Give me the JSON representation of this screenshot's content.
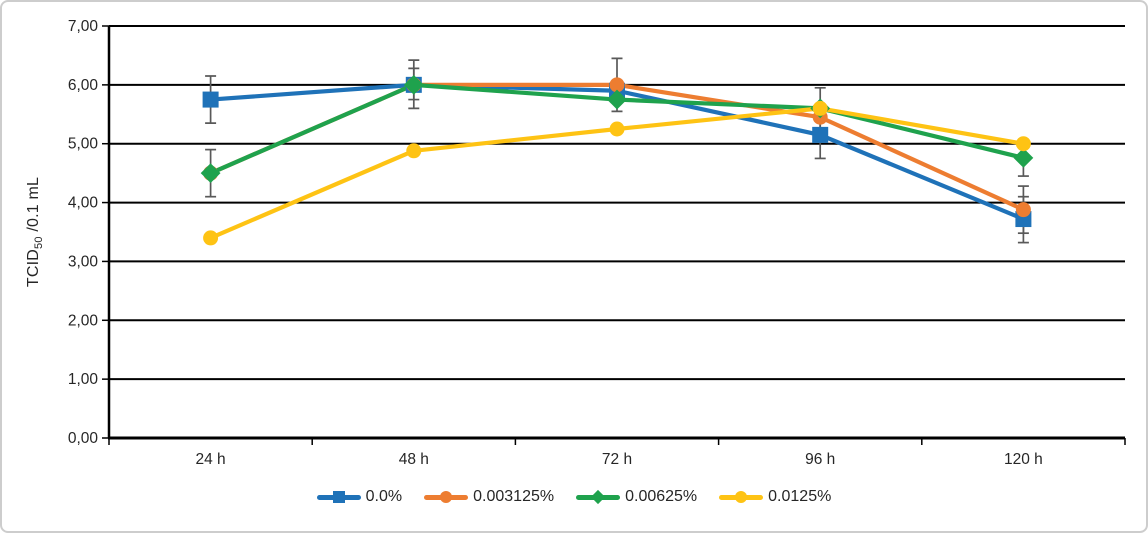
{
  "card": {
    "background": "#ffffff",
    "border_color": "#cdcdcd"
  },
  "chart_data": {
    "type": "line",
    "title": "",
    "xlabel": "",
    "ylabel": "TCID50 /0.1 mL",
    "ylabel_parts": {
      "prefix": "TCID",
      "sub": "50",
      "suffix": " /0.1 mL"
    },
    "categories": [
      "24 h",
      "48 h",
      "72 h",
      "96 h",
      "120 h"
    ],
    "ylim": [
      0,
      7
    ],
    "ytick_step": 1,
    "ytick_labels": [
      "0,00",
      "1,00",
      "2,00",
      "3,00",
      "4,00",
      "5,00",
      "6,00",
      "7,00"
    ],
    "grid": "horizontal-only",
    "gridline_color": "#000000",
    "axis_color": "#000000",
    "text_color": "#262626",
    "error_bar_color": "#595959",
    "legend_position": "bottom",
    "series": [
      {
        "name": "0.0%",
        "color": "#1F72B8",
        "marker": "square",
        "values": [
          5.75,
          6.0,
          5.9,
          5.15,
          3.72
        ],
        "error_bars": [
          {
            "cat": 0,
            "low": 5.35,
            "high": 6.15
          },
          {
            "cat": 1,
            "low": 5.75,
            "high": 6.28
          },
          {
            "cat": 3,
            "low": 4.75,
            "high": 5.55
          },
          {
            "cat": 4,
            "low": 3.32,
            "high": 4.1
          }
        ]
      },
      {
        "name": "0.003125%",
        "color": "#ED7D31",
        "marker": "circle",
        "values": [
          4.5,
          6.0,
          6.0,
          5.45,
          3.88
        ],
        "error_bars": [
          {
            "cat": 2,
            "low": 5.55,
            "high": 6.45
          },
          {
            "cat": 4,
            "low": 3.48,
            "high": 4.28
          }
        ]
      },
      {
        "name": "0.00625%",
        "color": "#1FA24D",
        "marker": "diamond",
        "values": [
          4.5,
          6.0,
          5.75,
          5.6,
          4.76
        ],
        "error_bars": [
          {
            "cat": 0,
            "low": 4.1,
            "high": 4.9
          },
          {
            "cat": 1,
            "low": 5.6,
            "high": 6.42
          },
          {
            "cat": 4,
            "low": 4.45,
            "high": 5.05
          }
        ]
      },
      {
        "name": "0.0125%",
        "color": "#FEC314",
        "marker": "circle",
        "values": [
          3.4,
          4.88,
          5.25,
          5.6,
          5.0
        ],
        "error_bars": [
          {
            "cat": 3,
            "low": 5.25,
            "high": 5.95
          }
        ]
      }
    ]
  }
}
